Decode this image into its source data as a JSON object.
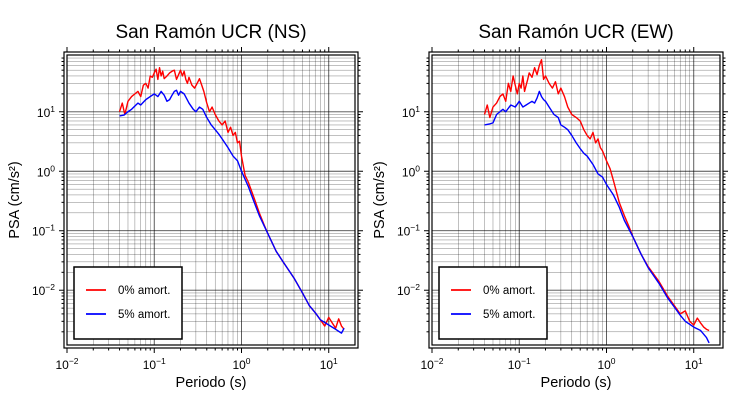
{
  "chart_data": [
    {
      "type": "line",
      "title": "San Ramón UCR (NS)",
      "xlabel": "Periodo (s)",
      "ylabel": "PSA (cm/s²)",
      "xscale": "log",
      "yscale": "log",
      "xlim": [
        0.01,
        20
      ],
      "ylim": [
        0.0012,
        90
      ],
      "grid": true,
      "legend_position": "bottom-left",
      "x_ticks": [
        {
          "base": "10",
          "exp": "−2"
        },
        {
          "base": "10",
          "exp": "−1"
        },
        {
          "base": "10",
          "exp": "0"
        },
        {
          "base": "10",
          "exp": "1"
        }
      ],
      "y_ticks": [
        {
          "base": "10",
          "exp": "−2"
        },
        {
          "base": "10",
          "exp": "−1"
        },
        {
          "base": "10",
          "exp": "0"
        },
        {
          "base": "10",
          "exp": "1"
        }
      ],
      "series": [
        {
          "name": "0% amort.",
          "color": "#ff0000",
          "x": [
            0.04,
            0.043,
            0.046,
            0.05,
            0.055,
            0.06,
            0.065,
            0.07,
            0.075,
            0.08,
            0.085,
            0.09,
            0.095,
            0.1,
            0.105,
            0.11,
            0.115,
            0.12,
            0.125,
            0.13,
            0.14,
            0.15,
            0.16,
            0.17,
            0.18,
            0.19,
            0.2,
            0.21,
            0.22,
            0.23,
            0.24,
            0.25,
            0.27,
            0.29,
            0.31,
            0.33,
            0.35,
            0.37,
            0.4,
            0.43,
            0.46,
            0.5,
            0.55,
            0.6,
            0.65,
            0.7,
            0.75,
            0.8,
            0.85,
            0.9,
            0.95,
            1.0,
            1.1,
            1.2,
            1.4,
            1.6,
            1.8,
            2.0,
            2.5,
            3.0,
            4.0,
            5.0,
            6.0,
            7.0,
            8.0,
            9.0,
            10.0,
            11.0,
            12.0,
            13.0,
            14.0,
            15.0
          ],
          "y": [
            10,
            14,
            9,
            15,
            18,
            20,
            22,
            18,
            28,
            30,
            25,
            40,
            38,
            45,
            52,
            35,
            55,
            40,
            48,
            36,
            40,
            45,
            48,
            50,
            35,
            42,
            50,
            40,
            48,
            35,
            30,
            38,
            28,
            25,
            30,
            36,
            28,
            22,
            14,
            10,
            12,
            9,
            7,
            6,
            7,
            4.5,
            5.5,
            4,
            4.5,
            3,
            3.2,
            1.8,
            0.85,
            0.65,
            0.35,
            0.2,
            0.13,
            0.09,
            0.045,
            0.03,
            0.016,
            0.009,
            0.0055,
            0.0042,
            0.0032,
            0.0025,
            0.0035,
            0.0028,
            0.0023,
            0.0033,
            0.0025,
            0.0022
          ]
        },
        {
          "name": "5% amort.",
          "color": "#0000ff",
          "x": [
            0.04,
            0.045,
            0.05,
            0.055,
            0.06,
            0.065,
            0.07,
            0.08,
            0.09,
            0.1,
            0.11,
            0.12,
            0.13,
            0.14,
            0.15,
            0.16,
            0.17,
            0.18,
            0.19,
            0.2,
            0.22,
            0.25,
            0.28,
            0.3,
            0.33,
            0.36,
            0.4,
            0.45,
            0.5,
            0.55,
            0.6,
            0.7,
            0.8,
            0.9,
            1.0,
            1.2,
            1.4,
            1.6,
            2.0,
            2.5,
            3.0,
            4.0,
            5.0,
            6.0,
            7.0,
            8.0,
            10.0,
            12.0,
            14.0,
            15.0
          ],
          "y": [
            8.5,
            8.8,
            10,
            11,
            12.5,
            14,
            13,
            16,
            18,
            20,
            18,
            22,
            19,
            15,
            16,
            19,
            22,
            23,
            19,
            22,
            20,
            14,
            11,
            10,
            12,
            11,
            8,
            6,
            5,
            4.2,
            3.5,
            2.5,
            1.8,
            1.5,
            1.0,
            0.55,
            0.3,
            0.18,
            0.09,
            0.045,
            0.03,
            0.016,
            0.009,
            0.0055,
            0.0042,
            0.0032,
            0.0026,
            0.0022,
            0.0019,
            0.0023
          ]
        }
      ]
    },
    {
      "type": "line",
      "title": "San Ramón UCR (EW)",
      "xlabel": "Periodo (s)",
      "ylabel": "PSA (cm/s²)",
      "xscale": "log",
      "yscale": "log",
      "xlim": [
        0.01,
        20
      ],
      "ylim": [
        0.0012,
        90
      ],
      "grid": true,
      "legend_position": "bottom-left",
      "x_ticks": [
        {
          "base": "10",
          "exp": "−2"
        },
        {
          "base": "10",
          "exp": "−1"
        },
        {
          "base": "10",
          "exp": "0"
        },
        {
          "base": "10",
          "exp": "1"
        }
      ],
      "y_ticks": [
        {
          "base": "10",
          "exp": "−2"
        },
        {
          "base": "10",
          "exp": "−1"
        },
        {
          "base": "10",
          "exp": "0"
        },
        {
          "base": "10",
          "exp": "1"
        }
      ],
      "series": [
        {
          "name": "0% amort.",
          "color": "#ff0000",
          "x": [
            0.04,
            0.043,
            0.046,
            0.05,
            0.055,
            0.06,
            0.065,
            0.07,
            0.075,
            0.08,
            0.085,
            0.09,
            0.095,
            0.1,
            0.105,
            0.11,
            0.115,
            0.12,
            0.125,
            0.13,
            0.14,
            0.15,
            0.16,
            0.17,
            0.18,
            0.19,
            0.2,
            0.22,
            0.24,
            0.26,
            0.28,
            0.3,
            0.33,
            0.36,
            0.4,
            0.45,
            0.5,
            0.55,
            0.6,
            0.65,
            0.7,
            0.75,
            0.8,
            0.85,
            0.9,
            1.0,
            1.1,
            1.2,
            1.4,
            1.6,
            1.8,
            2.0,
            2.5,
            3.0,
            4.0,
            5.0,
            6.0,
            7.0,
            8.0,
            9.0,
            10.0,
            11.0,
            12.0,
            13.0,
            14.0,
            15.0
          ],
          "y": [
            9,
            13,
            8,
            12,
            14,
            18,
            20,
            15,
            30,
            22,
            40,
            28,
            20,
            30,
            25,
            40,
            22,
            28,
            35,
            45,
            38,
            55,
            42,
            60,
            75,
            35,
            40,
            30,
            25,
            32,
            20,
            25,
            18,
            12,
            9,
            8,
            7,
            5,
            4,
            3.5,
            4.5,
            3,
            3.5,
            2.5,
            2.2,
            1.5,
            1.1,
            0.7,
            0.3,
            0.18,
            0.12,
            0.08,
            0.04,
            0.025,
            0.014,
            0.008,
            0.0055,
            0.004,
            0.0045,
            0.003,
            0.0026,
            0.0034,
            0.0028,
            0.0024,
            0.0022,
            0.0021
          ]
        },
        {
          "name": "5% amort.",
          "color": "#0000ff",
          "x": [
            0.04,
            0.045,
            0.05,
            0.055,
            0.06,
            0.065,
            0.07,
            0.08,
            0.09,
            0.1,
            0.11,
            0.12,
            0.13,
            0.14,
            0.15,
            0.16,
            0.17,
            0.18,
            0.19,
            0.2,
            0.22,
            0.25,
            0.28,
            0.3,
            0.33,
            0.36,
            0.4,
            0.45,
            0.5,
            0.55,
            0.6,
            0.7,
            0.8,
            0.9,
            1.0,
            1.2,
            1.4,
            1.6,
            2.0,
            2.5,
            3.0,
            4.0,
            5.0,
            6.0,
            7.0,
            8.0,
            10.0,
            12.0,
            14.0,
            15.0
          ],
          "y": [
            6,
            6.2,
            6.5,
            9,
            10,
            11,
            10,
            13,
            12,
            15,
            12,
            13,
            14,
            15,
            14,
            17,
            22,
            18,
            16,
            15,
            12,
            9,
            8,
            6,
            5.5,
            5,
            4,
            3,
            2.4,
            2.0,
            1.8,
            1.3,
            0.9,
            0.8,
            0.6,
            0.4,
            0.25,
            0.15,
            0.08,
            0.04,
            0.024,
            0.013,
            0.0075,
            0.0052,
            0.0038,
            0.003,
            0.0024,
            0.0021,
            0.0016,
            0.0013
          ]
        }
      ]
    }
  ]
}
